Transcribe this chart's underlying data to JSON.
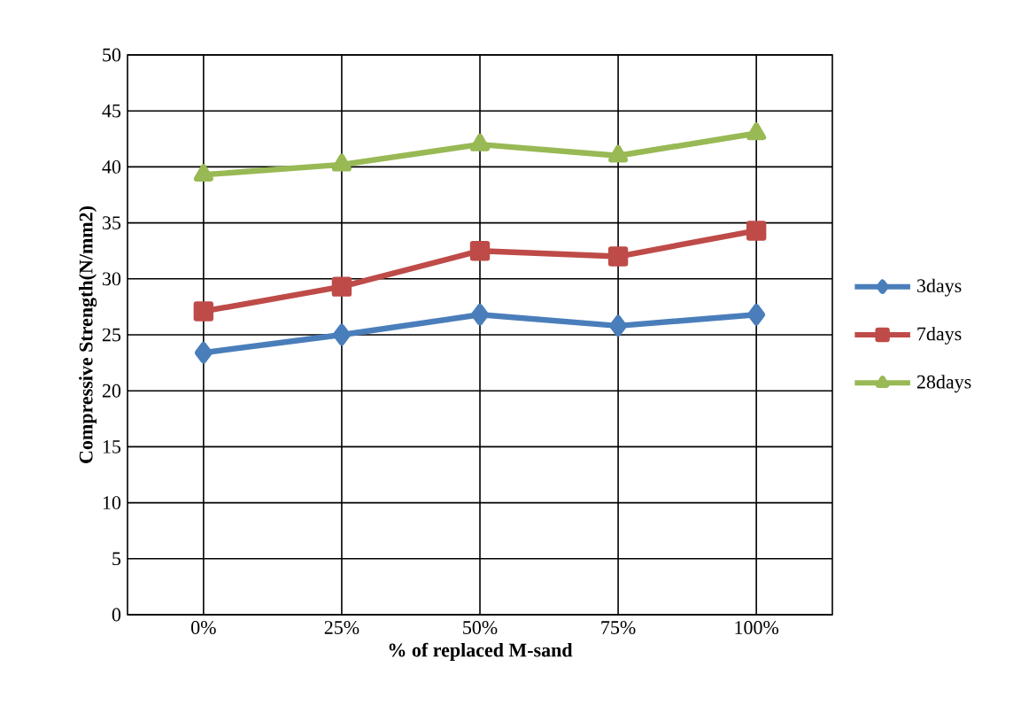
{
  "chart_data": {
    "type": "line",
    "xlabel": "% of replaced M-sand",
    "ylabel": "Compressive Strength(N/mm2)",
    "categories": [
      "0%",
      "25%",
      "50%",
      "75%",
      "100%"
    ],
    "series": [
      {
        "name": "3days",
        "color": "#4a7ebb",
        "marker": "diamond",
        "values": [
          23.4,
          25.0,
          26.8,
          25.8,
          26.8
        ]
      },
      {
        "name": "7days",
        "color": "#be4b48",
        "marker": "square",
        "values": [
          27.1,
          29.3,
          32.5,
          32.0,
          34.3
        ]
      },
      {
        "name": "28days",
        "color": "#98b954",
        "marker": "triangle",
        "values": [
          39.3,
          40.2,
          42.0,
          41.0,
          43.0
        ]
      }
    ],
    "ylim": [
      0,
      50
    ],
    "yticks": [
      0,
      5,
      10,
      15,
      20,
      25,
      30,
      35,
      40,
      45,
      50
    ],
    "grid": true,
    "legend": "right"
  }
}
